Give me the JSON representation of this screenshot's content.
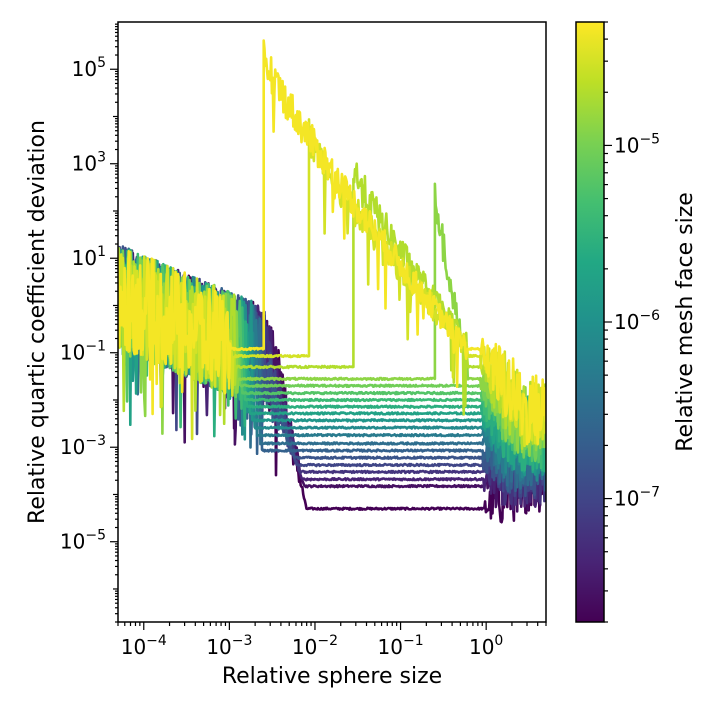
{
  "chart_data": {
    "type": "line",
    "title": "",
    "xlabel": "Relative sphere size",
    "ylabel": "Relative quartic coefficient deviation",
    "xscale": "log",
    "yscale": "log",
    "xlim": [
      5e-05,
      5.0
    ],
    "ylim": [
      2e-07,
      1000000.0
    ],
    "x_ticks": [
      {
        "value": 0.0001,
        "base": "10",
        "exp": "−4"
      },
      {
        "value": 0.001,
        "base": "10",
        "exp": "−3"
      },
      {
        "value": 0.01,
        "base": "10",
        "exp": "−2"
      },
      {
        "value": 0.1,
        "base": "10",
        "exp": "−1"
      },
      {
        "value": 1,
        "base": "10",
        "exp": "0"
      }
    ],
    "y_ticks": [
      {
        "value": 1e-05,
        "base": "10",
        "exp": "−5"
      },
      {
        "value": 0.001,
        "base": "10",
        "exp": "−3"
      },
      {
        "value": 0.1,
        "base": "10",
        "exp": "−1"
      },
      {
        "value": 10,
        "base": "10",
        "exp": "1"
      },
      {
        "value": 1000,
        "base": "10",
        "exp": "3"
      },
      {
        "value": 100000,
        "base": "10",
        "exp": "5"
      }
    ],
    "grid": false,
    "colormap": "viridis",
    "colorbar": {
      "label": "Relative mesh face size",
      "scale": "log",
      "lim": [
        2e-08,
        5e-05
      ],
      "ticks": [
        {
          "value": 1e-07,
          "base": "10",
          "exp": "−7"
        },
        {
          "value": 1e-06,
          "base": "10",
          "exp": "−6"
        },
        {
          "value": 1e-05,
          "base": "10",
          "exp": "−5"
        }
      ]
    },
    "series_description": "Each curve is one mesh face size; color encodes face size. Noisy deviation at small sphere size, flat plateau at intermediate sizes, noisy again near sphere size 1.",
    "series": [
      {
        "face_size": 4.5e-05,
        "plateau": 0.12,
        "step_x": 0.0025,
        "high_start": 200000,
        "high_end": 0.12
      },
      {
        "face_size": 3e-05,
        "plateau": 0.085,
        "step_x": 0.0085,
        "high_start": 4000,
        "high_end": 0.13
      },
      {
        "face_size": 2e-05,
        "plateau": 0.05,
        "step_x": 0.028,
        "high_start": 800,
        "high_end": 0.15
      },
      {
        "face_size": 1.3e-05,
        "plateau": 0.028,
        "step_x": 0.25,
        "high_start": 300,
        "high_end": 0.05
      },
      {
        "face_size": 9e-06,
        "plateau": 0.02
      },
      {
        "face_size": 6e-06,
        "plateau": 0.014
      },
      {
        "face_size": 4e-06,
        "plateau": 0.01
      },
      {
        "face_size": 2.7e-06,
        "plateau": 0.0072
      },
      {
        "face_size": 1.8e-06,
        "plateau": 0.0052
      },
      {
        "face_size": 1.2e-06,
        "plateau": 0.0037
      },
      {
        "face_size": 8e-07,
        "plateau": 0.0026
      },
      {
        "face_size": 5e-07,
        "plateau": 0.0018
      },
      {
        "face_size": 3.3e-07,
        "plateau": 0.0012
      },
      {
        "face_size": 2.2e-07,
        "plateau": 0.00085
      },
      {
        "face_size": 1.5e-07,
        "plateau": 0.0006
      },
      {
        "face_size": 1e-07,
        "plateau": 0.00042
      },
      {
        "face_size": 6.5e-08,
        "plateau": 0.0003
      },
      {
        "face_size": 4.3e-08,
        "plateau": 0.00021
      },
      {
        "face_size": 2.8e-08,
        "plateau": 0.00015
      },
      {
        "face_size": 2e-08,
        "plateau": 5e-05
      }
    ]
  }
}
